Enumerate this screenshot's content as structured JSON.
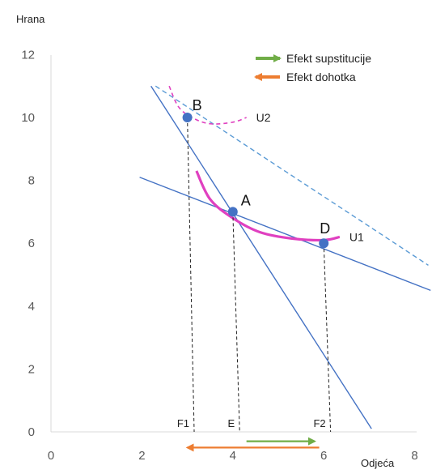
{
  "chart_data": {
    "type": "line",
    "ylabel": "Hrana",
    "xlabel": "Odjeća",
    "xlim": [
      0,
      8
    ],
    "ylim": [
      0,
      12
    ],
    "x_ticks": [
      "0",
      "2",
      "4",
      "6",
      "8"
    ],
    "y_ticks": [
      "0",
      "2",
      "4",
      "6",
      "8",
      "10",
      "12"
    ],
    "grid": false,
    "lines": [
      {
        "kind": "budget-original",
        "from": [
          2.2,
          11
        ],
        "to": [
          7.05,
          0.1
        ],
        "color": "#4472c4",
        "dashed": false
      },
      {
        "kind": "budget-new",
        "from": [
          1.95,
          8.1
        ],
        "to": [
          8.35,
          4.5
        ],
        "color": "#4472c4",
        "dashed": false
      },
      {
        "kind": "budget-shifted",
        "from": [
          2.3,
          11
        ],
        "to": [
          8.3,
          5.3
        ],
        "color": "#5b9bd5",
        "dashed": true
      }
    ],
    "curves": [
      {
        "name": "U1",
        "points": [
          [
            3.2,
            8.3
          ],
          [
            3.5,
            7.4
          ],
          [
            4.0,
            6.8
          ],
          [
            4.6,
            6.35
          ],
          [
            5.3,
            6.15
          ],
          [
            6.0,
            6.1
          ],
          [
            6.35,
            6.2
          ]
        ],
        "color": "#e040c0",
        "dashed": false
      },
      {
        "name": "U2",
        "points": [
          [
            2.6,
            11.0
          ],
          [
            2.8,
            10.35
          ],
          [
            3.1,
            10.0
          ],
          [
            3.5,
            9.8
          ],
          [
            4.0,
            9.85
          ],
          [
            4.3,
            10.0
          ]
        ],
        "color": "#e040c0",
        "dashed": true
      }
    ],
    "points": [
      {
        "label": "B",
        "x": 3.0,
        "y": 10.0
      },
      {
        "label": "A",
        "x": 4.0,
        "y": 7.0
      },
      {
        "label": "D",
        "x": 6.0,
        "y": 6.0
      }
    ],
    "drop_lines": [
      {
        "label": "F1",
        "top": [
          3.0,
          10.0
        ],
        "bottom_x": 3.15
      },
      {
        "label": "E",
        "top": [
          4.0,
          7.0
        ],
        "bottom_x": 4.15
      },
      {
        "label": "F2",
        "top": [
          6.0,
          6.0
        ],
        "bottom_x": 6.15
      }
    ],
    "effect_arrows": [
      {
        "name": "Efekt supstitucije",
        "from_x": 4.3,
        "to_x": 5.8,
        "y": -0.3,
        "color": "#70ad47"
      },
      {
        "name": "Efekt dohotka",
        "from_x": 5.9,
        "to_x": 3.0,
        "y": -0.5,
        "color": "#ed7d31"
      }
    ],
    "legend": {
      "position": "top-right",
      "entries": [
        {
          "name": "Efekt supstitucije",
          "color": "#70ad47",
          "direction": "right"
        },
        {
          "name": "Efekt dohotka",
          "color": "#ed7d31",
          "direction": "left"
        }
      ]
    }
  }
}
